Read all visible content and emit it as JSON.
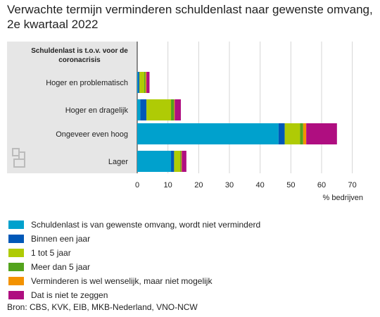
{
  "title": "Verwachte termijn verminderen schuldenlast naar gewenste omvang, 2e kwartaal 2022",
  "source": "Bron: CBS, KVK, EIB, MKB-Nederland, VNO-NCW",
  "chart_data": {
    "type": "bar",
    "orientation": "horizontal",
    "stacked": true,
    "category_header": "Schuldenlast is t.o.v. voor de coronacrisis",
    "categories": [
      "Hoger en problematisch",
      "Hoger en dragelijk",
      "Ongeveer even hoog",
      "Lager"
    ],
    "series": [
      {
        "name": "Schuldenlast is van gewenste omvang, wordt niet verminderd",
        "color": "#00a1cd",
        "values": [
          0.3,
          1.0,
          46.0,
          11.0
        ]
      },
      {
        "name": "Binnen een jaar",
        "color": "#0058b8",
        "values": [
          0.4,
          2.0,
          2.0,
          1.0
        ]
      },
      {
        "name": "1 tot 5 jaar",
        "color": "#afcb05",
        "values": [
          1.6,
          8.0,
          5.0,
          2.0
        ]
      },
      {
        "name": "Meer dan 5 jaar",
        "color": "#53a31d",
        "values": [
          0.4,
          1.0,
          1.0,
          0.3
        ]
      },
      {
        "name": "Verminderen is wel wenselijk, maar niet mogelijk",
        "color": "#f39200",
        "values": [
          0.3,
          0.2,
          1.0,
          0.2
        ]
      },
      {
        "name": "Dat is niet te zeggen",
        "color": "#af0e80",
        "values": [
          1.0,
          2.0,
          10.0,
          1.5
        ]
      }
    ],
    "xlabel": "% bedrijven",
    "xlim": [
      0,
      70
    ],
    "xticks": [
      0,
      10,
      20,
      30,
      40,
      50,
      60,
      70
    ],
    "grid": true,
    "legend_position": "bottom"
  }
}
